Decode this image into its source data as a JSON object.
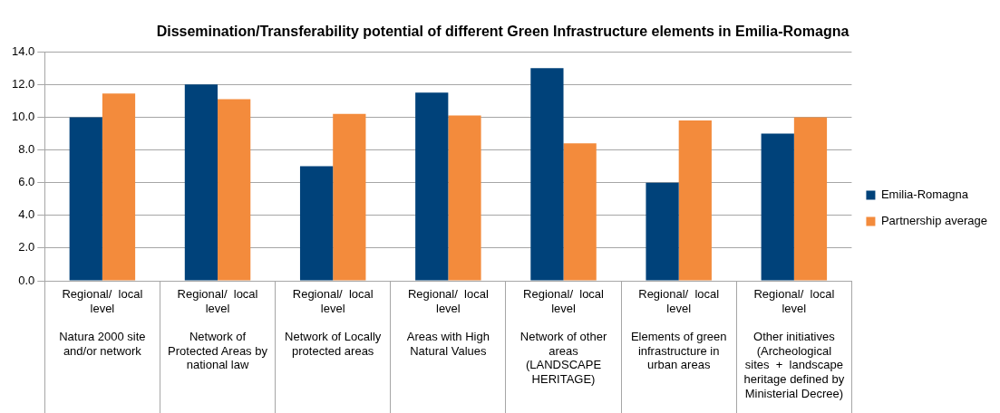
{
  "chart_data": {
    "type": "bar",
    "title": "Dissemination/Transferability potential of different Green Infrastructure elements in Emilia-Romagna",
    "categories": [
      "Regional/  local level\nNatura 2000 site and/or network",
      "Regional/  local level\nNetwork of Protected Areas by national law",
      "Regional/  local level\nNetwork of Locally protected areas",
      "Regional/  local level\nAreas with High Natural Values",
      "Regional/  local level\nNetwork of other areas (LANDSCAPE HERITAGE)",
      "Regional/  local level\nElements of green infrastructure in urban areas",
      "Regional/  local level\nOther initiatives (Archeological sites  +  landscape heritage defined by Ministerial Decree)"
    ],
    "series": [
      {
        "name": "Emilia-Romagna",
        "color": "#00427a",
        "values": [
          10,
          12,
          7,
          11.5,
          13,
          6,
          9
        ]
      },
      {
        "name": "Partnership average",
        "color": "#f38b3c",
        "values": [
          11.45,
          11.1,
          10.2,
          10.1,
          8.4,
          9.8,
          10.0
        ]
      }
    ],
    "ylim": [
      0,
      14
    ],
    "yticks": [
      {
        "value": 0,
        "label": "0.0"
      },
      {
        "value": 2,
        "label": "2.0"
      },
      {
        "value": 4,
        "label": "4.0"
      },
      {
        "value": 6,
        "label": "6.0"
      },
      {
        "value": 8,
        "label": "8.0"
      },
      {
        "value": 10,
        "label": "10.0"
      },
      {
        "value": 12,
        "label": "12.0"
      },
      {
        "value": 14,
        "label": "14.0"
      }
    ],
    "grid": "y",
    "legend": "right"
  }
}
